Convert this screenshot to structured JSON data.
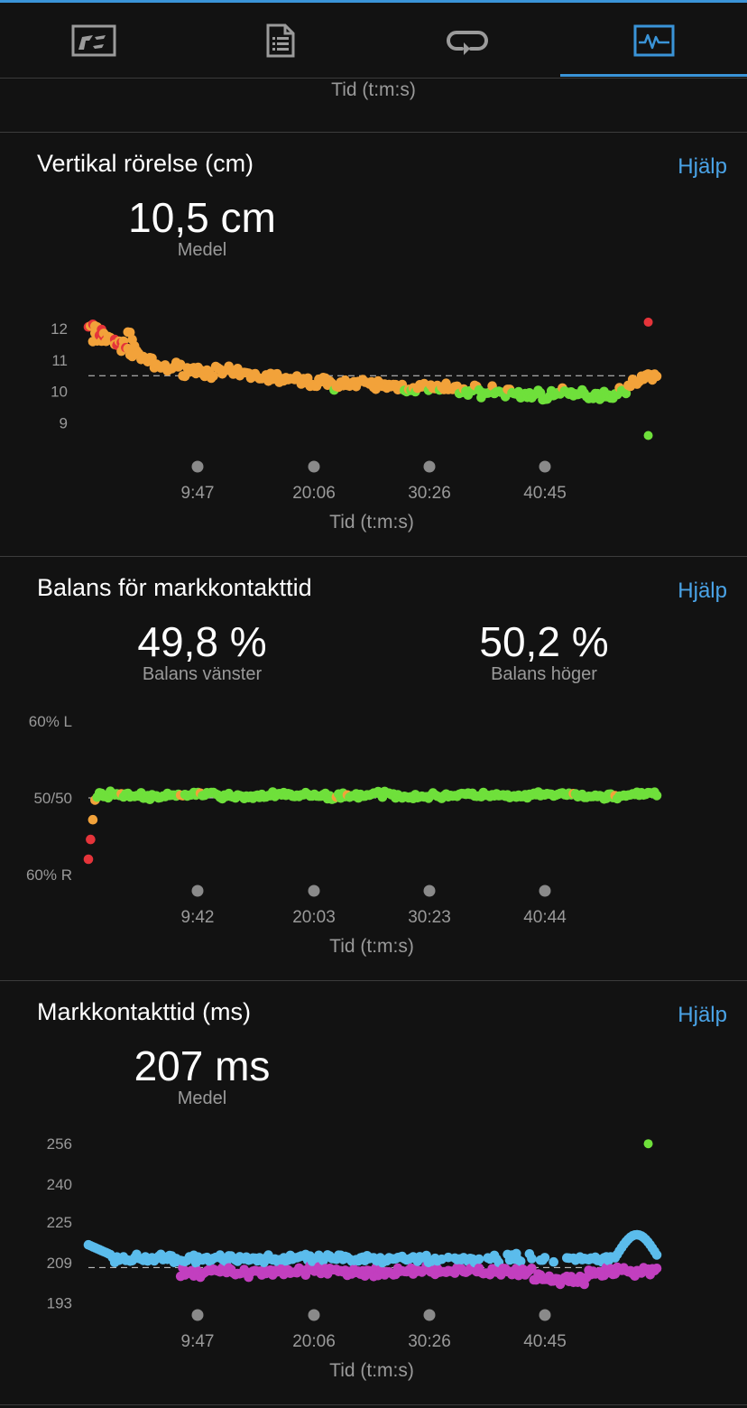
{
  "tabs": [
    {
      "icon": "lap-splits-icon",
      "active": false
    },
    {
      "icon": "document-details-icon",
      "active": false
    },
    {
      "icon": "repeat-laps-icon",
      "active": false
    },
    {
      "icon": "performance-chart-icon",
      "active": true
    }
  ],
  "previous_card_axis_title": "Tid (t:m:s)",
  "help_label": "Hjälp",
  "colors": {
    "accent": "#4aa3e6",
    "red": "#e5343a",
    "orange": "#f2a23a",
    "green": "#6fe03b",
    "blue": "#5bbcec",
    "purple": "#c23fbf"
  },
  "cards": [
    {
      "title": "Vertikal rörelse (cm)",
      "stats": [
        {
          "value": "10,5 cm",
          "label": "Medel"
        }
      ],
      "chart_data": {
        "type": "scatter",
        "ylabels": [
          "12",
          "11",
          "10",
          "9"
        ],
        "yticks": [
          12,
          11,
          10,
          9
        ],
        "ylim": [
          8.5,
          12.8
        ],
        "average": 10.5,
        "xlabels": [
          "9:47",
          "20:06",
          "30:26",
          "40:45"
        ],
        "xlabel": "Tid (t:m:s)",
        "outliers": [
          {
            "x": 0.985,
            "y": 12.2,
            "color": "red"
          },
          {
            "x": 0.985,
            "y": 8.6,
            "color": "green"
          }
        ]
      }
    },
    {
      "title": "Balans för markkontakttid",
      "stats": [
        {
          "value": "49,8 %",
          "label": "Balans vänster"
        },
        {
          "value": "50,2 %",
          "label": "Balans höger"
        }
      ],
      "chart_data": {
        "type": "scatter",
        "ylabels": [
          "60% L",
          "50/50",
          "60% R"
        ],
        "yticks": [
          60,
          50,
          40
        ],
        "ylim": [
          38,
          62
        ],
        "average": 50,
        "xlabels": [
          "9:42",
          "20:03",
          "30:23",
          "40:44"
        ],
        "xlabel": "Tid (t:m:s)"
      }
    },
    {
      "title": "Markkontakttid (ms)",
      "stats": [
        {
          "value": "207 ms",
          "label": "Medel"
        }
      ],
      "chart_data": {
        "type": "scatter",
        "ylabels": [
          "256",
          "240",
          "225",
          "209",
          "193"
        ],
        "yticks": [
          256,
          240,
          225,
          209,
          193
        ],
        "ylim": [
          190,
          260
        ],
        "average": 207,
        "xlabels": [
          "9:47",
          "20:06",
          "30:26",
          "40:45"
        ],
        "xlabel": "Tid (t:m:s)",
        "outliers": [
          {
            "x": 0.985,
            "y": 256,
            "color": "green"
          }
        ]
      }
    }
  ]
}
